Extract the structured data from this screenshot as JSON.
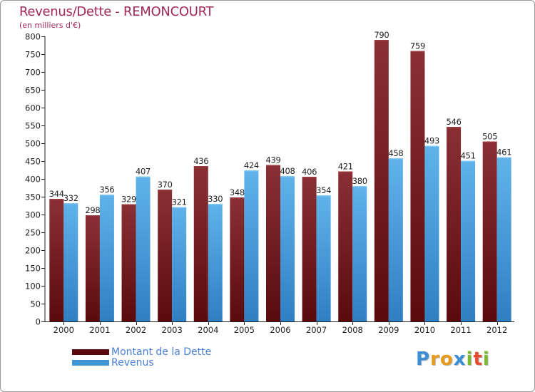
{
  "header": {
    "title": "Revenus/Dette - REMONCOURT",
    "subtitle": "(en milliers d'€)"
  },
  "chart_data": {
    "type": "bar",
    "categories": [
      "2000",
      "2001",
      "2002",
      "2003",
      "2004",
      "2005",
      "2006",
      "2007",
      "2008",
      "2009",
      "2010",
      "2011",
      "2012"
    ],
    "series": [
      {
        "name": "Montant de la Dette",
        "values": [
          344,
          298,
          329,
          370,
          436,
          348,
          439,
          406,
          421,
          790,
          759,
          546,
          505
        ],
        "color_top": "#8a3035",
        "color_bottom": "#5a0a0d"
      },
      {
        "name": "Revenus",
        "values": [
          332,
          356,
          407,
          321,
          330,
          424,
          408,
          354,
          380,
          458,
          493,
          451,
          461
        ],
        "color_top": "#5fb3ea",
        "color_bottom": "#2f7fc3"
      }
    ],
    "yticks": [
      0,
      50,
      100,
      150,
      200,
      250,
      300,
      350,
      400,
      450,
      500,
      550,
      600,
      650,
      700,
      750,
      800
    ],
    "ylim": [
      0,
      800
    ],
    "xlabel": "",
    "ylabel": "",
    "grid": false,
    "legend_position": "bottom-left"
  },
  "legend": {
    "items": [
      {
        "label": "Montant de la Dette",
        "color": "#5a0a0d"
      },
      {
        "label": "Revenus",
        "color": "#3d95d8"
      }
    ]
  },
  "logo": {
    "letters": [
      "P",
      "r",
      "o",
      "x",
      "i",
      "t",
      "i"
    ],
    "colors": [
      "#3b8fd6",
      "#e89a1f",
      "#e89a1f",
      "#3b8fd6",
      "#7cbb2e",
      "#e64b2e",
      "#7cbb2e"
    ]
  }
}
